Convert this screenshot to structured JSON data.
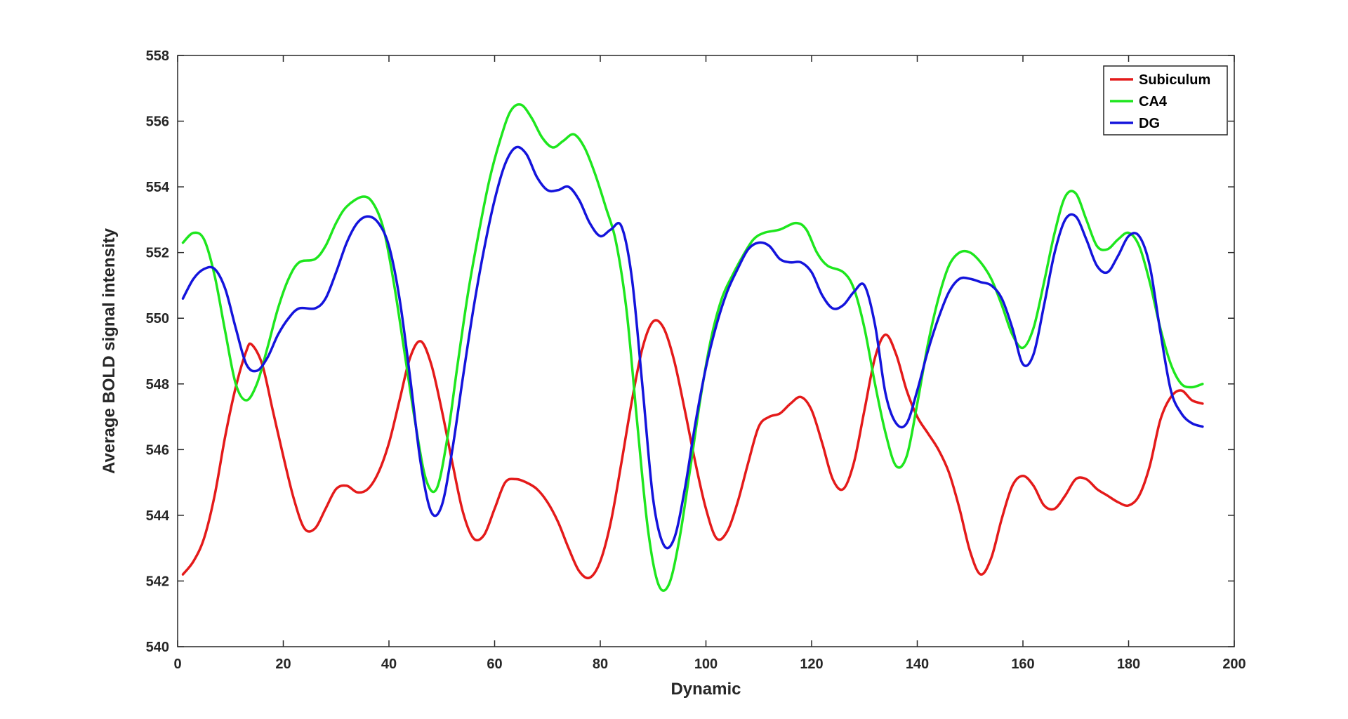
{
  "chart_data": {
    "type": "line",
    "xlabel": "Dynamic",
    "ylabel": "Average BOLD signal intensity",
    "xlim": [
      0,
      200
    ],
    "ylim": [
      540,
      558
    ],
    "xticks": [
      0,
      20,
      40,
      60,
      80,
      100,
      120,
      140,
      160,
      180,
      200
    ],
    "yticks": [
      540,
      542,
      544,
      546,
      548,
      550,
      552,
      554,
      556,
      558
    ],
    "grid": false,
    "legend_position": "top-right",
    "series": [
      {
        "name": "Subiculum",
        "color": "#e41a1a",
        "points": [
          [
            1,
            542.2
          ],
          [
            3,
            542.6
          ],
          [
            5,
            543.3
          ],
          [
            7,
            544.6
          ],
          [
            9,
            546.4
          ],
          [
            11,
            547.9
          ],
          [
            13,
            549.0
          ],
          [
            14,
            549.2
          ],
          [
            16,
            548.6
          ],
          [
            18,
            547.2
          ],
          [
            20,
            545.8
          ],
          [
            22,
            544.5
          ],
          [
            24,
            543.6
          ],
          [
            26,
            543.6
          ],
          [
            28,
            544.2
          ],
          [
            30,
            544.8
          ],
          [
            32,
            544.9
          ],
          [
            34,
            544.7
          ],
          [
            36,
            544.8
          ],
          [
            38,
            545.3
          ],
          [
            40,
            546.2
          ],
          [
            42,
            547.5
          ],
          [
            44,
            548.8
          ],
          [
            46,
            549.3
          ],
          [
            48,
            548.6
          ],
          [
            50,
            547.2
          ],
          [
            52,
            545.6
          ],
          [
            54,
            544.1
          ],
          [
            56,
            543.3
          ],
          [
            58,
            543.4
          ],
          [
            60,
            544.2
          ],
          [
            62,
            545.0
          ],
          [
            64,
            545.1
          ],
          [
            66,
            545.0
          ],
          [
            68,
            544.8
          ],
          [
            70,
            544.4
          ],
          [
            72,
            543.8
          ],
          [
            74,
            543.0
          ],
          [
            76,
            542.3
          ],
          [
            78,
            542.1
          ],
          [
            80,
            542.6
          ],
          [
            82,
            543.8
          ],
          [
            84,
            545.6
          ],
          [
            86,
            547.5
          ],
          [
            88,
            549.1
          ],
          [
            90,
            549.9
          ],
          [
            92,
            549.7
          ],
          [
            94,
            548.7
          ],
          [
            96,
            547.2
          ],
          [
            98,
            545.6
          ],
          [
            100,
            544.2
          ],
          [
            102,
            543.3
          ],
          [
            104,
            543.5
          ],
          [
            106,
            544.4
          ],
          [
            108,
            545.6
          ],
          [
            110,
            546.7
          ],
          [
            112,
            547.0
          ],
          [
            114,
            547.1
          ],
          [
            116,
            547.4
          ],
          [
            118,
            547.6
          ],
          [
            120,
            547.2
          ],
          [
            122,
            546.2
          ],
          [
            124,
            545.1
          ],
          [
            126,
            544.8
          ],
          [
            128,
            545.6
          ],
          [
            130,
            547.2
          ],
          [
            132,
            548.8
          ],
          [
            134,
            549.5
          ],
          [
            136,
            548.9
          ],
          [
            138,
            547.8
          ],
          [
            140,
            547.0
          ],
          [
            142,
            546.5
          ],
          [
            144,
            546.0
          ],
          [
            146,
            545.3
          ],
          [
            148,
            544.2
          ],
          [
            150,
            542.9
          ],
          [
            152,
            542.2
          ],
          [
            154,
            542.7
          ],
          [
            156,
            543.9
          ],
          [
            158,
            544.9
          ],
          [
            160,
            545.2
          ],
          [
            162,
            544.9
          ],
          [
            164,
            544.3
          ],
          [
            166,
            544.2
          ],
          [
            168,
            544.6
          ],
          [
            170,
            545.1
          ],
          [
            172,
            545.1
          ],
          [
            174,
            544.8
          ],
          [
            176,
            544.6
          ],
          [
            178,
            544.4
          ],
          [
            180,
            544.3
          ],
          [
            182,
            544.6
          ],
          [
            184,
            545.5
          ],
          [
            186,
            546.9
          ],
          [
            188,
            547.6
          ],
          [
            190,
            547.8
          ],
          [
            192,
            547.5
          ],
          [
            194,
            547.4
          ]
        ]
      },
      {
        "name": "CA4",
        "color": "#1ee61e",
        "points": [
          [
            1,
            552.3
          ],
          [
            3,
            552.6
          ],
          [
            5,
            552.4
          ],
          [
            7,
            551.3
          ],
          [
            9,
            549.6
          ],
          [
            11,
            548.0
          ],
          [
            13,
            547.5
          ],
          [
            15,
            548.0
          ],
          [
            17,
            549.1
          ],
          [
            19,
            550.3
          ],
          [
            21,
            551.2
          ],
          [
            23,
            551.7
          ],
          [
            26,
            551.8
          ],
          [
            28,
            552.2
          ],
          [
            30,
            552.9
          ],
          [
            32,
            553.4
          ],
          [
            35,
            553.7
          ],
          [
            37,
            553.5
          ],
          [
            39,
            552.7
          ],
          [
            41,
            551.0
          ],
          [
            43,
            548.9
          ],
          [
            45,
            546.8
          ],
          [
            47,
            545.1
          ],
          [
            49,
            544.8
          ],
          [
            51,
            546.3
          ],
          [
            53,
            548.6
          ],
          [
            55,
            550.8
          ],
          [
            57,
            552.6
          ],
          [
            59,
            554.2
          ],
          [
            61,
            555.4
          ],
          [
            63,
            556.3
          ],
          [
            65,
            556.5
          ],
          [
            67,
            556.1
          ],
          [
            69,
            555.5
          ],
          [
            71,
            555.2
          ],
          [
            73,
            555.4
          ],
          [
            75,
            555.6
          ],
          [
            77,
            555.2
          ],
          [
            79,
            554.4
          ],
          [
            81,
            553.4
          ],
          [
            83,
            552.3
          ],
          [
            85,
            550.2
          ],
          [
            87,
            546.8
          ],
          [
            89,
            543.6
          ],
          [
            91,
            541.9
          ],
          [
            93,
            541.9
          ],
          [
            95,
            543.3
          ],
          [
            97,
            545.4
          ],
          [
            99,
            547.6
          ],
          [
            101,
            549.4
          ],
          [
            103,
            550.6
          ],
          [
            105,
            551.3
          ],
          [
            107,
            551.9
          ],
          [
            109,
            552.4
          ],
          [
            111,
            552.6
          ],
          [
            114,
            552.7
          ],
          [
            117,
            552.9
          ],
          [
            119,
            552.7
          ],
          [
            121,
            552.0
          ],
          [
            123,
            551.6
          ],
          [
            126,
            551.4
          ],
          [
            128,
            550.9
          ],
          [
            130,
            549.7
          ],
          [
            132,
            548.0
          ],
          [
            134,
            546.5
          ],
          [
            136,
            545.5
          ],
          [
            138,
            545.8
          ],
          [
            140,
            547.4
          ],
          [
            142,
            549.2
          ],
          [
            144,
            550.6
          ],
          [
            146,
            551.6
          ],
          [
            148,
            552.0
          ],
          [
            150,
            552.0
          ],
          [
            152,
            551.7
          ],
          [
            154,
            551.2
          ],
          [
            156,
            550.4
          ],
          [
            158,
            549.5
          ],
          [
            160,
            549.1
          ],
          [
            162,
            549.7
          ],
          [
            164,
            551.1
          ],
          [
            166,
            552.6
          ],
          [
            168,
            553.7
          ],
          [
            170,
            553.8
          ],
          [
            172,
            553.0
          ],
          [
            174,
            552.2
          ],
          [
            176,
            552.1
          ],
          [
            178,
            552.4
          ],
          [
            180,
            552.6
          ],
          [
            182,
            552.2
          ],
          [
            184,
            551.1
          ],
          [
            186,
            549.7
          ],
          [
            188,
            548.6
          ],
          [
            190,
            548.0
          ],
          [
            192,
            547.9
          ],
          [
            194,
            548.0
          ]
        ]
      },
      {
        "name": "DG",
        "color": "#1414dc",
        "points": [
          [
            1,
            550.6
          ],
          [
            3,
            551.2
          ],
          [
            5,
            551.5
          ],
          [
            7,
            551.5
          ],
          [
            9,
            550.9
          ],
          [
            11,
            549.7
          ],
          [
            13,
            548.6
          ],
          [
            15,
            548.4
          ],
          [
            17,
            548.8
          ],
          [
            19,
            549.5
          ],
          [
            21,
            550.0
          ],
          [
            23,
            550.3
          ],
          [
            26,
            550.3
          ],
          [
            28,
            550.6
          ],
          [
            30,
            551.4
          ],
          [
            32,
            552.3
          ],
          [
            34,
            552.9
          ],
          [
            36,
            553.1
          ],
          [
            38,
            552.9
          ],
          [
            40,
            552.2
          ],
          [
            42,
            550.6
          ],
          [
            44,
            548.2
          ],
          [
            46,
            545.6
          ],
          [
            48,
            544.1
          ],
          [
            50,
            544.3
          ],
          [
            52,
            546.0
          ],
          [
            54,
            548.2
          ],
          [
            56,
            550.3
          ],
          [
            58,
            552.1
          ],
          [
            60,
            553.6
          ],
          [
            62,
            554.7
          ],
          [
            64,
            555.2
          ],
          [
            66,
            555.0
          ],
          [
            68,
            554.3
          ],
          [
            70,
            553.9
          ],
          [
            72,
            553.9
          ],
          [
            74,
            554.0
          ],
          [
            76,
            553.6
          ],
          [
            78,
            552.9
          ],
          [
            80,
            552.5
          ],
          [
            82,
            552.7
          ],
          [
            84,
            552.8
          ],
          [
            86,
            551.2
          ],
          [
            88,
            547.9
          ],
          [
            90,
            544.5
          ],
          [
            92,
            543.1
          ],
          [
            94,
            543.3
          ],
          [
            96,
            544.8
          ],
          [
            98,
            546.8
          ],
          [
            100,
            548.5
          ],
          [
            102,
            549.8
          ],
          [
            104,
            550.8
          ],
          [
            106,
            551.5
          ],
          [
            108,
            552.1
          ],
          [
            110,
            552.3
          ],
          [
            112,
            552.2
          ],
          [
            114,
            551.8
          ],
          [
            116,
            551.7
          ],
          [
            118,
            551.7
          ],
          [
            120,
            551.4
          ],
          [
            122,
            550.7
          ],
          [
            124,
            550.3
          ],
          [
            126,
            550.4
          ],
          [
            128,
            550.8
          ],
          [
            130,
            551.0
          ],
          [
            132,
            549.8
          ],
          [
            134,
            547.7
          ],
          [
            136,
            546.8
          ],
          [
            138,
            546.8
          ],
          [
            140,
            547.8
          ],
          [
            142,
            549.0
          ],
          [
            144,
            550.0
          ],
          [
            146,
            550.8
          ],
          [
            148,
            551.2
          ],
          [
            150,
            551.2
          ],
          [
            152,
            551.1
          ],
          [
            154,
            551.0
          ],
          [
            156,
            550.6
          ],
          [
            158,
            549.7
          ],
          [
            160,
            548.6
          ],
          [
            162,
            548.9
          ],
          [
            164,
            550.4
          ],
          [
            166,
            552.0
          ],
          [
            168,
            553.0
          ],
          [
            170,
            553.1
          ],
          [
            172,
            552.4
          ],
          [
            174,
            551.6
          ],
          [
            176,
            551.4
          ],
          [
            178,
            551.9
          ],
          [
            180,
            552.5
          ],
          [
            182,
            552.5
          ],
          [
            184,
            551.6
          ],
          [
            186,
            549.6
          ],
          [
            188,
            547.8
          ],
          [
            190,
            547.1
          ],
          [
            192,
            546.8
          ],
          [
            194,
            546.7
          ]
        ]
      }
    ]
  }
}
